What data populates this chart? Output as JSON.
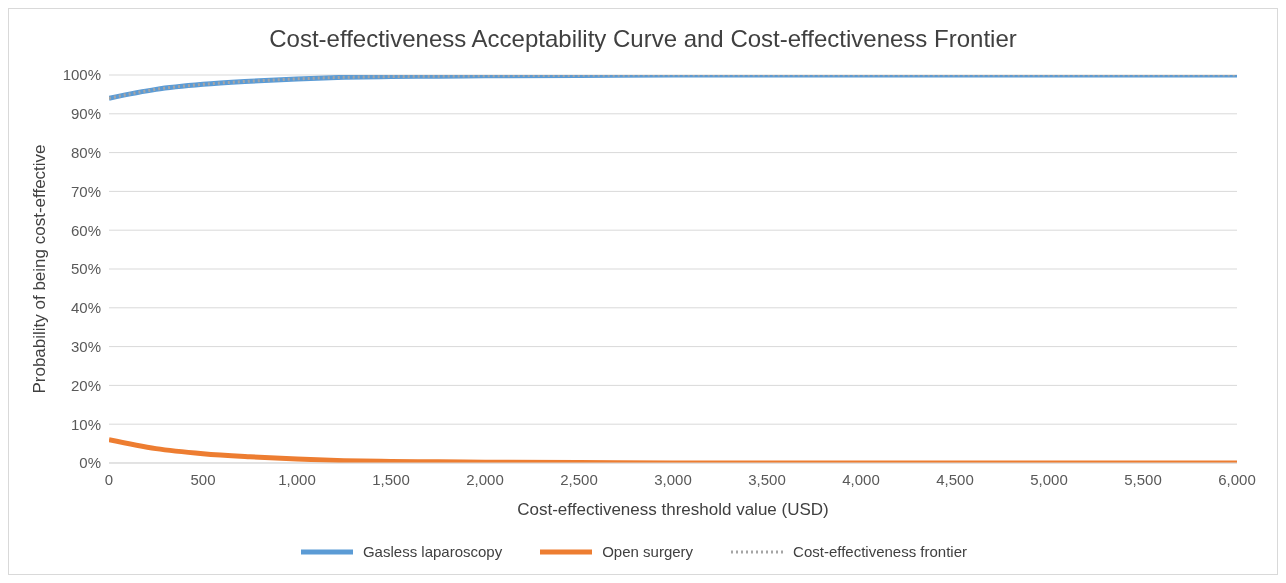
{
  "chart_data": {
    "type": "line",
    "title": "Cost-effectiveness Acceptability Curve and Cost-effectiveness Frontier",
    "xlabel": "Cost-effectiveness threshold value (USD)",
    "ylabel": "Probability of being cost-effective",
    "x": [
      0,
      250,
      500,
      750,
      1000,
      1250,
      1500,
      1750,
      2000,
      2500,
      3000,
      3500,
      4000,
      4500,
      5000,
      5500,
      6000
    ],
    "series": [
      {
        "name": "Gasless laparoscopy",
        "color": "#5b9bd5",
        "line_style": "solid",
        "values": [
          94,
          96.3,
          97.6,
          98.4,
          99,
          99.4,
          99.6,
          99.7,
          99.8,
          99.9,
          100,
          100,
          100,
          100,
          100,
          100,
          100
        ]
      },
      {
        "name": "Open surgery",
        "color": "#ed7d31",
        "line_style": "solid",
        "values": [
          6,
          3.7,
          2.4,
          1.6,
          1,
          0.6,
          0.4,
          0.3,
          0.2,
          0.1,
          0,
          0,
          0,
          0,
          0,
          0,
          0
        ]
      },
      {
        "name": "Cost-effectiveness frontier",
        "color": "#a5a5a5",
        "line_style": "dotted",
        "values": [
          94,
          96.3,
          97.6,
          98.4,
          99,
          99.4,
          99.6,
          99.7,
          99.8,
          99.9,
          100,
          100,
          100,
          100,
          100,
          100,
          100
        ]
      }
    ],
    "xlim": [
      0,
      6000
    ],
    "xticks": [
      0,
      500,
      {
        "value": 1000,
        "label": "1,000"
      },
      {
        "value": 1500,
        "label": "1,500"
      },
      {
        "value": 2000,
        "label": "2,000"
      },
      {
        "value": 2500,
        "label": "2,500"
      },
      {
        "value": 3000,
        "label": "3,000"
      },
      {
        "value": 3500,
        "label": "3,500"
      },
      {
        "value": 4000,
        "label": "4,000"
      },
      {
        "value": 4500,
        "label": "4,500"
      },
      {
        "value": 5000,
        "label": "5,000"
      },
      {
        "value": 5500,
        "label": "5,500"
      },
      {
        "value": 6000,
        "label": "6,000"
      }
    ],
    "ylim": [
      0,
      100
    ],
    "yticks": [
      {
        "value": 0,
        "label": "0%"
      },
      {
        "value": 10,
        "label": "10%"
      },
      {
        "value": 20,
        "label": "20%"
      },
      {
        "value": 30,
        "label": "30%"
      },
      {
        "value": 40,
        "label": "40%"
      },
      {
        "value": 50,
        "label": "50%"
      },
      {
        "value": 60,
        "label": "60%"
      },
      {
        "value": 70,
        "label": "70%"
      },
      {
        "value": 80,
        "label": "80%"
      },
      {
        "value": 90,
        "label": "90%"
      },
      {
        "value": 100,
        "label": "100%"
      }
    ],
    "grid": "y",
    "legend": "bottom",
    "marker": "none"
  }
}
